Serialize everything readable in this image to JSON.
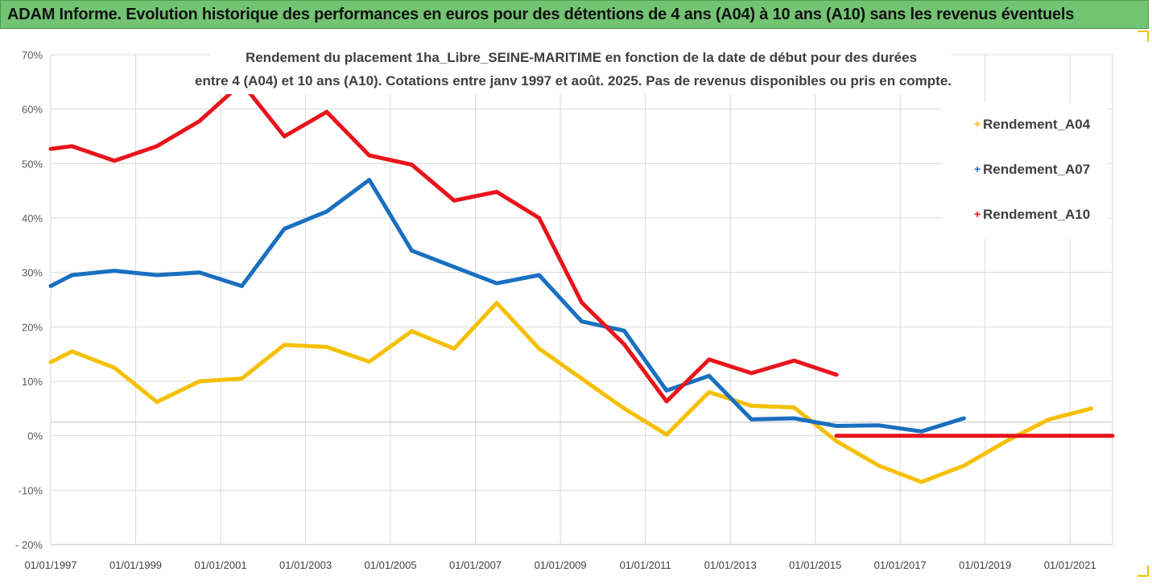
{
  "banner": {
    "title": "ADAM Informe. Evolution historique des performances en euros pour des détentions de 4 ans (A04) à 10 ans (A10) sans les revenus éventuels"
  },
  "chart_data": {
    "type": "line",
    "title_line1": "Rendement du placement 1ha_Libre_SEINE-MARITIME  en fonction de la date de début pour des durées",
    "title_line2": "entre 4 (A04) et 10 ans (A10). Cotations entre janv 1997 et août. 2025. Pas de revenus disponibles ou pris en compte.",
    "xlim": [
      1997.0,
      2022.0
    ],
    "ylim": [
      -20,
      70
    ],
    "yticks": [
      -20,
      -10,
      0,
      10,
      20,
      30,
      40,
      50,
      60,
      70
    ],
    "ytick_labels": [
      "- 20%",
      "-10%",
      "0%",
      "10%",
      "20%",
      "30%",
      "40%",
      "50%",
      "60%",
      "70%"
    ],
    "xticks": [
      1997,
      1999,
      2001,
      2003,
      2005,
      2007,
      2009,
      2011,
      2013,
      2015,
      2017,
      2019,
      2021
    ],
    "xtick_labels": [
      "01/01/1997",
      "01/01/1999",
      "01/01/2001",
      "01/01/2003",
      "01/01/2005",
      "01/01/2007",
      "01/01/2009",
      "01/01/2011",
      "01/01/2013",
      "01/01/2015",
      "01/01/2017",
      "01/01/2019",
      "01/01/2021"
    ],
    "xgrid": [
      1997,
      1999,
      2001,
      2003,
      2005,
      2007,
      2009,
      2011,
      2013,
      2015,
      2017,
      2019,
      2021,
      2022
    ],
    "grid": true,
    "legend_position": "right",
    "series": [
      {
        "name": "Rendement_A04",
        "color": "#f5c000",
        "points": [
          [
            1997.0,
            13.5
          ],
          [
            1997.5,
            15.5
          ],
          [
            1998.5,
            12.5
          ],
          [
            1999.5,
            6.2
          ],
          [
            2000.5,
            10.0
          ],
          [
            2001.5,
            10.5
          ],
          [
            2002.5,
            16.7
          ],
          [
            2003.5,
            16.3
          ],
          [
            2004.5,
            13.6
          ],
          [
            2005.5,
            19.2
          ],
          [
            2006.5,
            16.0
          ],
          [
            2007.5,
            24.4
          ],
          [
            2008.5,
            16.0
          ],
          [
            2009.5,
            10.5
          ],
          [
            2010.5,
            5.0
          ],
          [
            2011.5,
            0.2
          ],
          [
            2012.5,
            8.0
          ],
          [
            2013.5,
            5.5
          ],
          [
            2014.5,
            5.2
          ],
          [
            2015.5,
            -1.0
          ],
          [
            2016.5,
            -5.5
          ],
          [
            2017.5,
            -8.5
          ],
          [
            2018.5,
            -5.5
          ],
          [
            2019.5,
            -1.0
          ],
          [
            2020.5,
            3.0
          ],
          [
            2021.5,
            5.0
          ]
        ]
      },
      {
        "name": "Rendement_A07",
        "color": "#1a6fc0",
        "points": [
          [
            1997.0,
            27.5
          ],
          [
            1997.5,
            29.5
          ],
          [
            1998.5,
            30.3
          ],
          [
            1999.5,
            29.5
          ],
          [
            2000.5,
            30.0
          ],
          [
            2001.5,
            27.5
          ],
          [
            2002.5,
            38.0
          ],
          [
            2003.5,
            41.2
          ],
          [
            2004.5,
            47.0
          ],
          [
            2005.5,
            34.0
          ],
          [
            2006.5,
            31.0
          ],
          [
            2007.5,
            28.0
          ],
          [
            2008.5,
            29.5
          ],
          [
            2009.5,
            21.0
          ],
          [
            2010.5,
            19.3
          ],
          [
            2011.5,
            8.3
          ],
          [
            2012.5,
            11.0
          ],
          [
            2013.5,
            3.0
          ],
          [
            2014.5,
            3.2
          ],
          [
            2015.5,
            1.8
          ],
          [
            2016.5,
            1.9
          ],
          [
            2017.5,
            0.8
          ],
          [
            2018.5,
            3.2
          ]
        ]
      },
      {
        "name": "Rendement_A10",
        "color": "#e8141c",
        "points": [
          [
            1997.0,
            52.7
          ],
          [
            1997.5,
            53.2
          ],
          [
            1998.5,
            50.5
          ],
          [
            1999.5,
            53.2
          ],
          [
            2000.5,
            57.8
          ],
          [
            2001.5,
            64.8
          ],
          [
            2002.5,
            55.0
          ],
          [
            2003.5,
            59.5
          ],
          [
            2004.5,
            51.5
          ],
          [
            2005.5,
            49.8
          ],
          [
            2006.5,
            43.2
          ],
          [
            2007.5,
            44.8
          ],
          [
            2008.5,
            40.0
          ],
          [
            2009.5,
            24.5
          ],
          [
            2010.5,
            16.8
          ],
          [
            2011.5,
            6.3
          ],
          [
            2012.5,
            14.0
          ],
          [
            2013.5,
            11.5
          ],
          [
            2014.5,
            13.8
          ],
          [
            2015.5,
            11.2
          ]
        ]
      },
      {
        "name": "",
        "color": "#e8141c",
        "points": [
          [
            2015.5,
            0.0
          ],
          [
            2022.0,
            0.0
          ]
        ]
      }
    ]
  }
}
